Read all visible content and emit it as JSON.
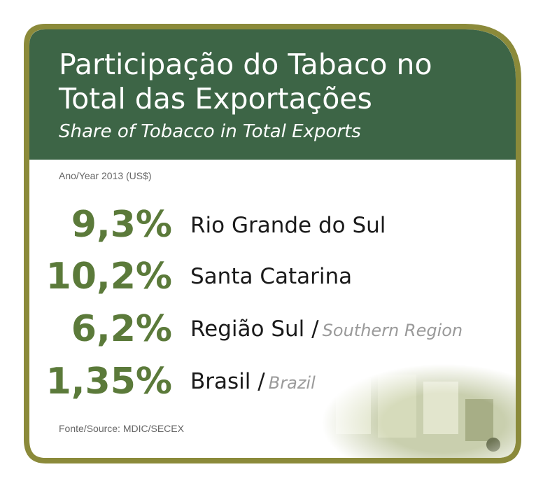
{
  "header": {
    "title_lines": [
      "Participação do Tabaco no",
      "Total das Exportações"
    ],
    "subtitle": "Share of Tobacco in Total Exports"
  },
  "note": "Ano/Year 2013 (US$)",
  "rows": [
    {
      "value": "9,3%",
      "name": "Rio Grande do Sul"
    },
    {
      "value": "10,2%",
      "name": "Santa Catarina"
    },
    {
      "value": "6,2%",
      "name": "Região Sul /",
      "name_en": "Southern Region"
    },
    {
      "value": "1,35%",
      "name": "Brasil /",
      "name_en": "Brazil"
    }
  ],
  "source": "Fonte/Source: MDIC/SECEX"
}
